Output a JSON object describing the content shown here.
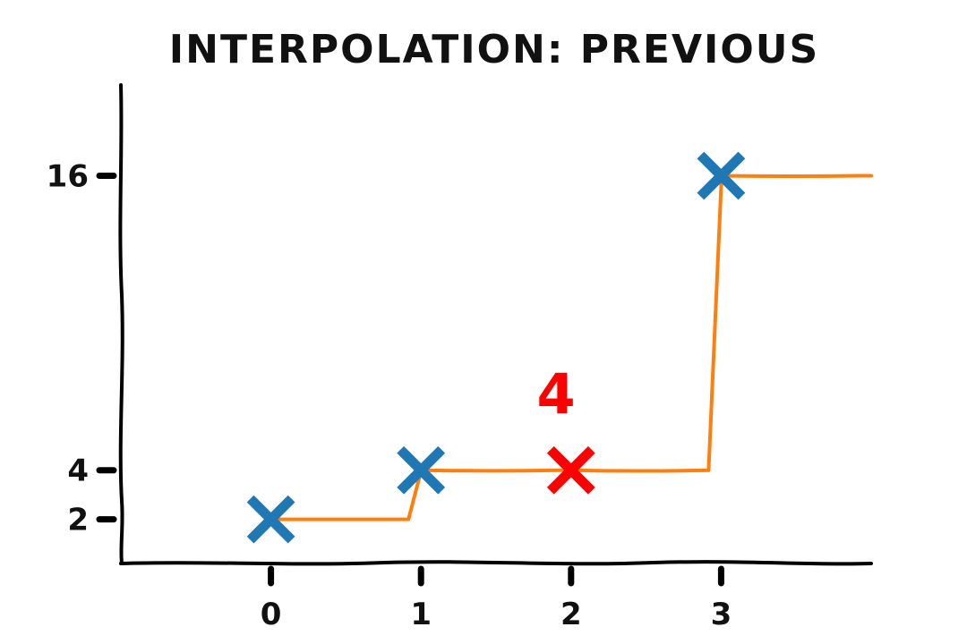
{
  "chart_data": {
    "type": "line",
    "title": "INTERPOLATION: PREVIOUS",
    "xlabel": "",
    "ylabel": "",
    "x_ticks": [
      0,
      1,
      2,
      3
    ],
    "y_ticks": [
      2,
      4,
      16
    ],
    "xlim": [
      -1,
      4
    ],
    "ylim": [
      0.2,
      19.7
    ],
    "grid": false,
    "legend": "none",
    "series": [
      {
        "role": "step-line",
        "interpolation": "previous",
        "x": [
          0,
          1,
          2,
          3,
          4
        ],
        "y": [
          2,
          4,
          4,
          16,
          16
        ],
        "color": "#ff7f0e"
      },
      {
        "role": "data-points",
        "marker": "x",
        "x": [
          0,
          1,
          3
        ],
        "y": [
          2,
          4,
          16
        ],
        "color": "#1f77b4"
      },
      {
        "role": "query-point",
        "marker": "x",
        "x": [
          2
        ],
        "y": [
          4
        ],
        "color": "#ff0000"
      }
    ],
    "annotations": [
      {
        "text": "4",
        "x": 1.9,
        "y": 6.3,
        "color": "#ff0000"
      }
    ]
  }
}
